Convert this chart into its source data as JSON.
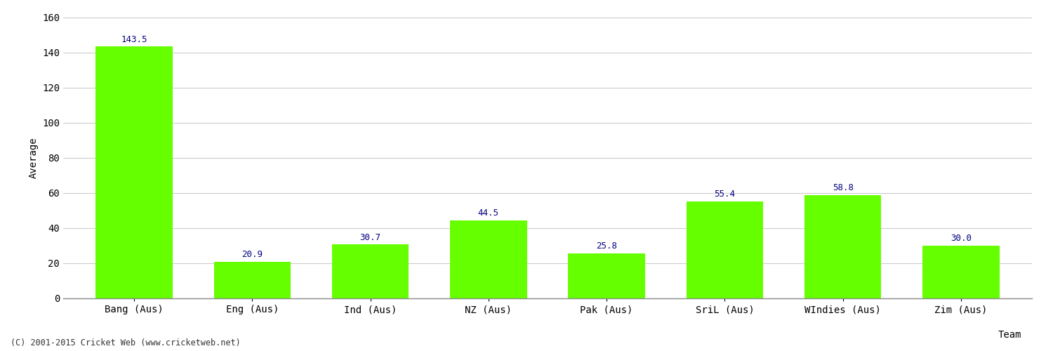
{
  "categories": [
    "Bang (Aus)",
    "Eng (Aus)",
    "Ind (Aus)",
    "NZ (Aus)",
    "Pak (Aus)",
    "SriL (Aus)",
    "WIndies (Aus)",
    "Zim (Aus)"
  ],
  "values": [
    143.5,
    20.9,
    30.7,
    44.5,
    25.8,
    55.4,
    58.8,
    30.0
  ],
  "bar_color": "#66ff00",
  "bar_edge_color": "#66ff00",
  "value_color": "#000080",
  "ylabel": "Average",
  "xlabel": "Team",
  "ylim": [
    0,
    160
  ],
  "yticks": [
    0,
    20,
    40,
    60,
    80,
    100,
    120,
    140,
    160
  ],
  "grid_color": "#cccccc",
  "bg_color": "#ffffff",
  "footer": "(C) 2001-2015 Cricket Web (www.cricketweb.net)",
  "label_fontsize": 10,
  "tick_fontsize": 10,
  "value_fontsize": 9
}
